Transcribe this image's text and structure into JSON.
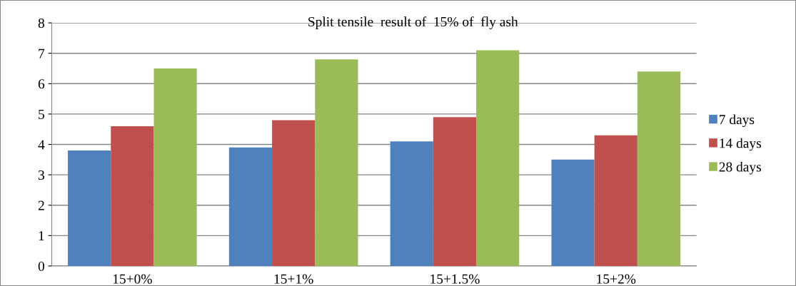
{
  "chart_data": {
    "type": "bar",
    "title": "Split tensile  result of  15% of  fly ash",
    "categories": [
      "15+0%",
      "15+1%",
      "15+1.5%",
      "15+2%"
    ],
    "series": [
      {
        "name": "7 days",
        "color": "#4f81bd",
        "values": [
          3.8,
          3.9,
          4.1,
          3.5
        ]
      },
      {
        "name": "14 days",
        "color": "#c0504d",
        "values": [
          4.6,
          4.8,
          4.9,
          4.3
        ]
      },
      {
        "name": "28 days",
        "color": "#9bbb59",
        "values": [
          6.5,
          6.8,
          7.1,
          6.4
        ]
      }
    ],
    "ylim": [
      0,
      8
    ],
    "yticks": [
      0,
      1,
      2,
      3,
      4,
      5,
      6,
      7,
      8
    ],
    "grid": "y",
    "legend": "right"
  }
}
